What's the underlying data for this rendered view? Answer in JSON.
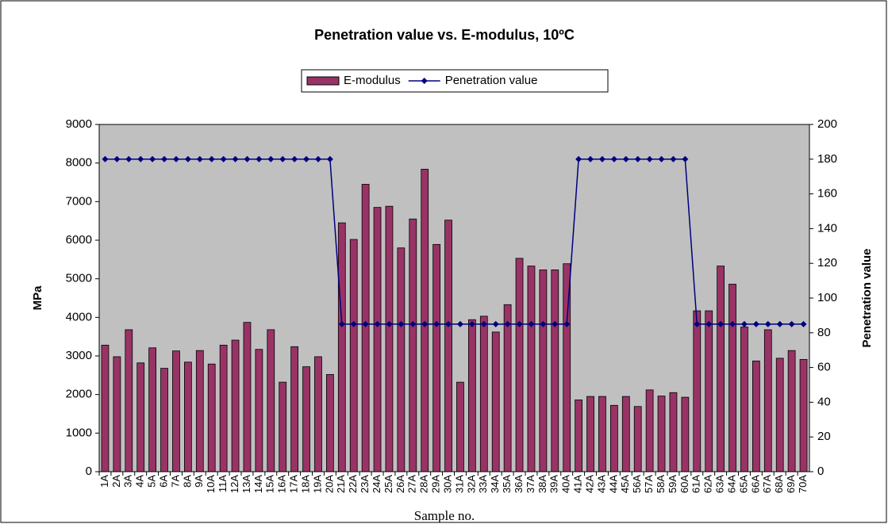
{
  "chart_data": {
    "type": "bar-line",
    "title": "Penetration value vs. E-modulus, 10ºC",
    "x_label": "Sample no.",
    "y_label": "MPa",
    "y2_label": "Penetration value",
    "categories": [
      "1A",
      "2A",
      "3A",
      "4A",
      "5A",
      "6A",
      "7A",
      "8A",
      "9A",
      "10A",
      "11A",
      "12A",
      "13A",
      "14A",
      "15A",
      "16A",
      "17A",
      "18A",
      "19A",
      "20A",
      "21A",
      "22A",
      "23A",
      "24A",
      "25A",
      "26A",
      "27A",
      "28A",
      "29A",
      "30A",
      "31A",
      "32A",
      "33A",
      "34A",
      "35A",
      "36A",
      "37A",
      "38A",
      "39A",
      "40A",
      "41A",
      "42A",
      "43A",
      "44A",
      "45A",
      "56A",
      "57A",
      "58A",
      "59A",
      "60A",
      "61A",
      "62A",
      "63A",
      "64A",
      "65A",
      "66A",
      "67A",
      "68A",
      "69A",
      "70A"
    ],
    "series": [
      {
        "name": "E-modulus",
        "type": "bar",
        "color": "#993366",
        "values": [
          3280,
          2980,
          3680,
          2820,
          3210,
          2680,
          3130,
          2840,
          3140,
          2790,
          3280,
          3410,
          3870,
          3170,
          3680,
          2320,
          3240,
          2720,
          2980,
          2520,
          6450,
          6020,
          7450,
          6850,
          6880,
          5800,
          6550,
          7840,
          5890,
          6520,
          2320,
          3940,
          4030,
          3620,
          4330,
          5530,
          5330,
          5230,
          5230,
          5390,
          1860,
          1950,
          1950,
          1720,
          1950,
          1690,
          2120,
          1960,
          2050,
          1930,
          4170,
          4170,
          5330,
          4860,
          3750,
          2870,
          3680,
          2940,
          3140,
          2910
        ]
      },
      {
        "name": "Penetration value",
        "type": "line",
        "axis": "y2",
        "color": "#000080",
        "values": [
          180,
          180,
          180,
          180,
          180,
          180,
          180,
          180,
          180,
          180,
          180,
          180,
          180,
          180,
          180,
          180,
          180,
          180,
          180,
          180,
          85,
          85,
          85,
          85,
          85,
          85,
          85,
          85,
          85,
          85,
          85,
          85,
          85,
          85,
          85,
          85,
          85,
          85,
          85,
          85,
          180,
          180,
          180,
          180,
          180,
          180,
          180,
          180,
          180,
          180,
          85,
          85,
          85,
          85,
          85,
          85,
          85,
          85,
          85,
          85
        ]
      }
    ],
    "ylim": [
      0,
      9000
    ],
    "yticks": [
      0,
      1000,
      2000,
      3000,
      4000,
      5000,
      6000,
      7000,
      8000,
      9000
    ],
    "y2lim": [
      0,
      200
    ],
    "y2ticks": [
      0,
      20,
      40,
      60,
      80,
      100,
      120,
      140,
      160,
      180,
      200
    ],
    "plot_background": "#c0c0c0",
    "legend": "top"
  }
}
